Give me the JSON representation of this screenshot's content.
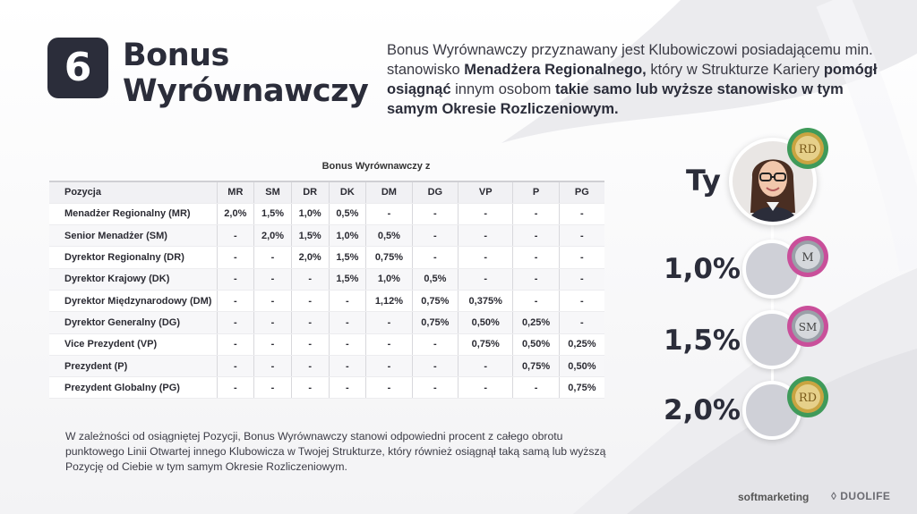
{
  "badge_number": "6",
  "title": {
    "line1": "Bonus",
    "line2": "Wyrównawczy"
  },
  "intro": {
    "p1": "Bonus Wyrównawczy przyznawany jest Klubowiczowi posiadającemu min. stanowisko ",
    "b1": "Menadżera Regionalnego,",
    "p2": " który w Strukturze Kariery ",
    "b2": "pomógł osiągnąć",
    "p3": " innym osobom ",
    "b3": "takie samo lub wyższe stanowisko w tym samym Okresie Rozliczeniowym."
  },
  "table": {
    "caption": "Bonus Wyrównawczy z",
    "columns": [
      "Pozycja",
      "MR",
      "SM",
      "DR",
      "DK",
      "DM",
      "DG",
      "VP",
      "P",
      "PG"
    ],
    "rows": [
      [
        "Menadżer Regionalny (MR)",
        "2,0%",
        "1,5%",
        "1,0%",
        "0,5%",
        "-",
        "-",
        "-",
        "-",
        "-"
      ],
      [
        "Senior Menadżer (SM)",
        "-",
        "2,0%",
        "1,5%",
        "1,0%",
        "0,5%",
        "-",
        "-",
        "-",
        "-"
      ],
      [
        "Dyrektor Regionalny (DR)",
        "-",
        "-",
        "2,0%",
        "1,5%",
        "0,75%",
        "-",
        "-",
        "-",
        "-"
      ],
      [
        "Dyrektor Krajowy (DK)",
        "-",
        "-",
        "-",
        "1,5%",
        "1,0%",
        "0,5%",
        "-",
        "-",
        "-"
      ],
      [
        "Dyrektor Międzynarodowy (DM)",
        "-",
        "-",
        "-",
        "-",
        "1,12%",
        "0,75%",
        "0,375%",
        "-",
        "-"
      ],
      [
        "Dyrektor Generalny (DG)",
        "-",
        "-",
        "-",
        "-",
        "-",
        "0,75%",
        "0,50%",
        "0,25%",
        "-"
      ],
      [
        "Vice Prezydent (VP)",
        "-",
        "-",
        "-",
        "-",
        "-",
        "-",
        "0,75%",
        "0,50%",
        "0,25%"
      ],
      [
        "Prezydent (P)",
        "-",
        "-",
        "-",
        "-",
        "-",
        "-",
        "-",
        "0,75%",
        "0,50%"
      ],
      [
        "Prezydent Globalny (PG)",
        "-",
        "-",
        "-",
        "-",
        "-",
        "-",
        "-",
        "-",
        "0,75%"
      ]
    ]
  },
  "footnote": "W zależności od osiągniętej Pozycji, Bonus Wyrównawczy stanowi odpowiedni procent z całego obrotu punktowego Linii Otwartej innego Klubowicza w Twojej Strukturze, który również osiągnął taką samą lub wyższą Pozycję od Ciebie w tym samym Okresie Rozliczeniowym.",
  "diagram": {
    "you_label": "Ty",
    "levels": [
      "1,0%",
      "1,5%",
      "2,0%"
    ],
    "medals": [
      "RD",
      "M",
      "SM",
      "RD"
    ]
  },
  "brand": {
    "left": "softmarketing",
    "right": "DUOLIFE"
  },
  "colors": {
    "dark": "#2b2d3a",
    "badge_gold": "#c9a441",
    "badge_green": "#3f9a5a",
    "badge_pink": "#c94f9a"
  }
}
